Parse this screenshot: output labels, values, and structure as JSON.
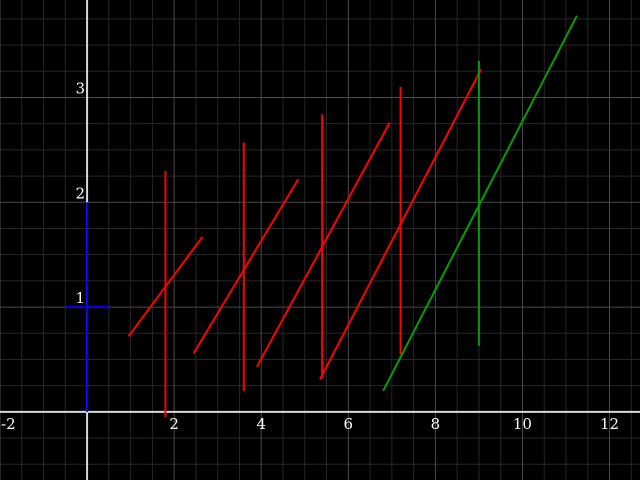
{
  "chart_data": {
    "type": "line",
    "title": "",
    "xlabel": "",
    "ylabel": "",
    "xlim": [
      -2.0,
      12.7
    ],
    "ylim": [
      -0.65,
      3.93
    ],
    "grid": true,
    "x_ticks": [
      -2,
      2,
      4,
      6,
      8,
      10,
      12
    ],
    "y_ticks": [
      1,
      2,
      3
    ],
    "colors": {
      "background": "#000000",
      "grid_major": "#4a4a4a",
      "grid_minor": "#262626",
      "axis": "#d8d8d8",
      "series_red": "#ff0000",
      "series_green": "#00a000",
      "series_blue": "#0000ff"
    },
    "series": [
      {
        "color": "#ff0000",
        "segments": [
          {
            "x": [
              1.8,
              1.8
            ],
            "y": [
              2.3,
              -0.05
            ]
          },
          {
            "x": [
              0.95,
              2.65
            ],
            "y": [
              0.72,
              1.67
            ]
          },
          {
            "x": [
              3.6,
              3.6
            ],
            "y": [
              2.57,
              0.2
            ]
          },
          {
            "x": [
              2.45,
              4.85
            ],
            "y": [
              0.56,
              2.22
            ]
          },
          {
            "x": [
              5.4,
              5.4
            ],
            "y": [
              2.84,
              0.32
            ]
          },
          {
            "x": [
              3.9,
              6.95
            ],
            "y": [
              0.43,
              2.76
            ]
          },
          {
            "x": [
              7.2,
              7.2
            ],
            "y": [
              3.1,
              0.55
            ]
          },
          {
            "x": [
              5.35,
              9.05
            ],
            "y": [
              0.31,
              3.27
            ]
          }
        ]
      },
      {
        "color": "#00a000",
        "segments": [
          {
            "x": [
              9.0,
              9.0
            ],
            "y": [
              3.35,
              0.63
            ]
          },
          {
            "x": [
              6.8,
              11.25
            ],
            "y": [
              0.2,
              3.78
            ]
          }
        ]
      },
      {
        "color": "#0000ff",
        "segments": [
          {
            "x": [
              0.0,
              0.0
            ],
            "y": [
              2.0,
              0.0
            ]
          },
          {
            "x": [
              -0.5,
              0.5
            ],
            "y": [
              1.0,
              1.0
            ]
          }
        ]
      }
    ]
  }
}
